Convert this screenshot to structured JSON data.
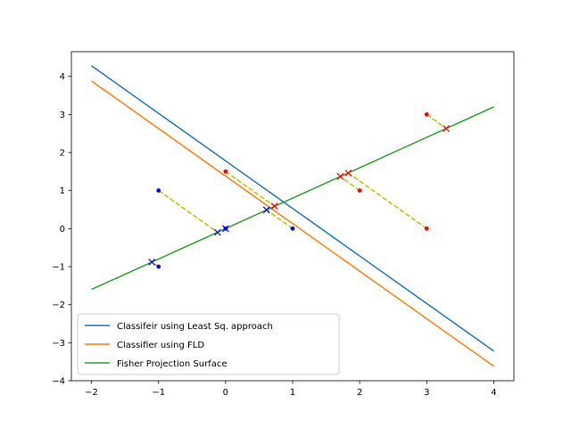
{
  "chart_data": {
    "type": "line",
    "title": "",
    "xlabel": "",
    "ylabel": "",
    "xlim": [
      -2.3,
      4.3
    ],
    "ylim": [
      -4,
      4.65
    ],
    "xticks": [
      -2,
      -1,
      0,
      1,
      2,
      3,
      4
    ],
    "yticks": [
      -4,
      -3,
      -2,
      -1,
      0,
      1,
      2,
      3,
      4
    ],
    "xtick_labels": [
      "−2",
      "−1",
      "0",
      "1",
      "2",
      "3",
      "4"
    ],
    "ytick_labels": [
      "−4",
      "−3",
      "−2",
      "−1",
      "0",
      "1",
      "2",
      "3",
      "4"
    ],
    "grid": false,
    "legend_position": "lower-left",
    "series": [
      {
        "name": "Classifeir using Least Sq. approach",
        "color": "#1f77b4",
        "x": [
          -2,
          4
        ],
        "y": [
          4.28,
          -3.22
        ]
      },
      {
        "name": "Classifier using FLD",
        "color": "#ff7f0e",
        "x": [
          -2,
          4
        ],
        "y": [
          3.88,
          -3.62
        ]
      },
      {
        "name": "Fisher Projection Surface",
        "color": "#2ca02c",
        "x": [
          -2,
          4
        ],
        "y": [
          -1.6,
          3.2
        ]
      }
    ],
    "points_class_blue": {
      "color": "#0000ff",
      "x": [
        -1,
        0,
        1,
        -1
      ],
      "y": [
        1,
        0,
        0,
        -1
      ]
    },
    "points_class_red": {
      "color": "#ff0000",
      "x": [
        0,
        2,
        3,
        3
      ],
      "y": [
        1.5,
        1,
        0,
        3
      ]
    },
    "projections_blue": {
      "color": "#0000ff",
      "x": [
        -0.12,
        0,
        0.61,
        -1.1
      ],
      "y": [
        -0.1,
        0,
        0.49,
        -0.88
      ]
    },
    "projections_red": {
      "color": "#ff0000",
      "x": [
        0.73,
        1.71,
        1.83,
        3.29
      ],
      "y": [
        0.59,
        1.37,
        1.46,
        2.63
      ]
    },
    "projection_line_color": "#bfbf00"
  }
}
